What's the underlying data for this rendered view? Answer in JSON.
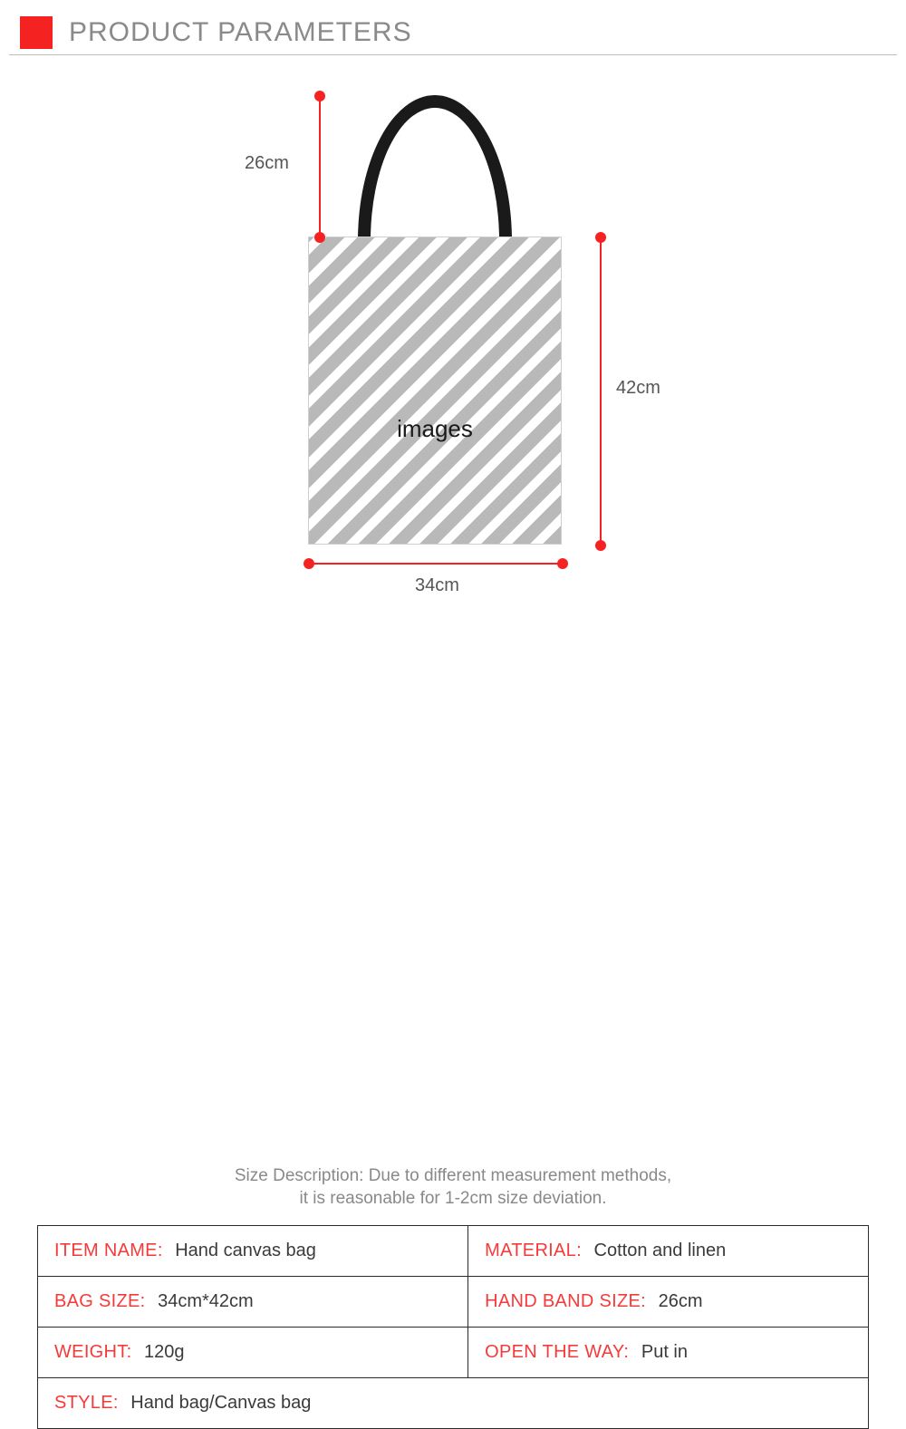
{
  "header": {
    "title": "PRODUCT PARAMETERS",
    "accent_color": "#f52222"
  },
  "diagram": {
    "bag_placeholder_text": "images",
    "dimensions": {
      "handle_label": "26cm",
      "height_label": "42cm",
      "width_label": "34cm"
    },
    "stripe_colors": {
      "dark": "#b9b9b9",
      "light": "#ffffff"
    },
    "line_color": "#f52222",
    "handle_color": "#1a1a1a"
  },
  "size_note": {
    "line1": "Size Description: Due to different measurement methods,",
    "line2": "it is reasonable for 1-2cm size deviation."
  },
  "params": {
    "rows": [
      [
        {
          "label": "ITEM NAME:",
          "value": "Hand canvas bag"
        },
        {
          "label": "MATERIAL:",
          "value": "Cotton and linen"
        }
      ],
      [
        {
          "label": "BAG SIZE:",
          "value": "34cm*42cm"
        },
        {
          "label": "HAND BAND SIZE:",
          "value": "26cm"
        }
      ],
      [
        {
          "label": "WEIGHT:",
          "value": "120g"
        },
        {
          "label": "OPEN THE WAY:",
          "value": "Put in"
        }
      ],
      [
        {
          "label": "STYLE:",
          "value": "Hand bag/Canvas bag"
        }
      ]
    ],
    "label_color": "#f53a3a",
    "border_color": "#2a2a2a"
  }
}
